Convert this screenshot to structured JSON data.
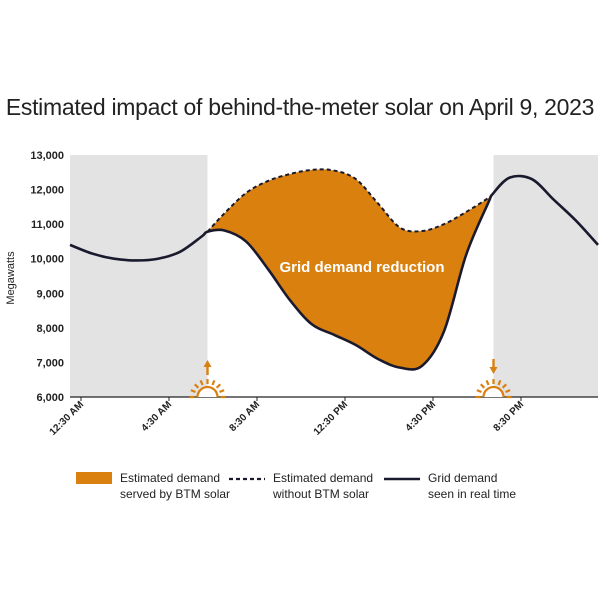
{
  "title": "Estimated impact of behind-the-meter solar on April 9, 2023",
  "chart_data": {
    "type": "line",
    "title": "Estimated impact of behind-the-meter solar on April 9, 2023",
    "ylabel": "Megawatts",
    "xlabel": "",
    "ylim": [
      6000,
      13000
    ],
    "xlim": [
      0,
      24
    ],
    "y_ticks": [
      "13,000",
      "12,000",
      "11,000",
      "10,000",
      "9,000",
      "8,000",
      "7,000",
      "6,000"
    ],
    "y_tick_values": [
      13000,
      12000,
      11000,
      10000,
      9000,
      8000,
      7000,
      6000
    ],
    "x_ticks": [
      "12:30 AM",
      "4:30 AM",
      "8:30 AM",
      "12:30 PM",
      "4:30 PM",
      "8:30 PM"
    ],
    "x_tick_values": [
      0.5,
      4.5,
      8.5,
      12.5,
      16.5,
      20.5
    ],
    "night_shading": [
      [
        0,
        6.25
      ],
      [
        19.25,
        24
      ]
    ],
    "sunrise_hour": 6.25,
    "sunset_hour": 19.25,
    "series": [
      {
        "name": "Grid demand seen in real time",
        "style": "solid",
        "x": [
          0,
          1,
          2,
          3,
          4,
          5,
          6,
          6.25,
          7,
          8,
          9,
          10,
          11,
          12,
          13,
          14,
          15,
          16,
          17,
          18,
          19,
          19.25,
          20,
          21,
          22,
          23,
          24
        ],
        "values": [
          10400,
          10150,
          10000,
          9950,
          10000,
          10200,
          10650,
          10780,
          10820,
          10500,
          9700,
          8800,
          8100,
          7800,
          7500,
          7100,
          6850,
          6900,
          7900,
          10100,
          11600,
          11900,
          12350,
          12300,
          11700,
          11100,
          10400
        ]
      },
      {
        "name": "Estimated demand without BTM solar",
        "style": "dashed",
        "x": [
          6.25,
          7,
          8,
          9,
          10,
          11,
          12,
          13,
          14,
          15,
          16,
          17,
          18,
          19,
          19.25
        ],
        "values": [
          10780,
          11300,
          11900,
          12250,
          12450,
          12570,
          12550,
          12300,
          11600,
          10900,
          10800,
          11000,
          11350,
          11750,
          11900
        ]
      }
    ],
    "fill_between": {
      "name": "Estimated demand served by BTM solar",
      "color": "#d9800f",
      "between": [
        "Estimated demand without BTM solar",
        "Grid demand seen in real time"
      ],
      "x_range": [
        6.25,
        19.25
      ]
    },
    "annotations": [
      "Grid demand reduction"
    ],
    "legend": [
      {
        "label_1": "Estimated demand",
        "label_2": "served by BTM solar",
        "kind": "fill"
      },
      {
        "label_1": "Estimated demand",
        "label_2": "without BTM solar",
        "kind": "dashed"
      },
      {
        "label_1": "Grid demand",
        "label_2": "seen in real time",
        "kind": "solid"
      }
    ],
    "colors": {
      "fill": "#d9800f",
      "line": "#1a1a2e",
      "shade": "#e3e3e3",
      "sun": "#d9800f"
    }
  }
}
